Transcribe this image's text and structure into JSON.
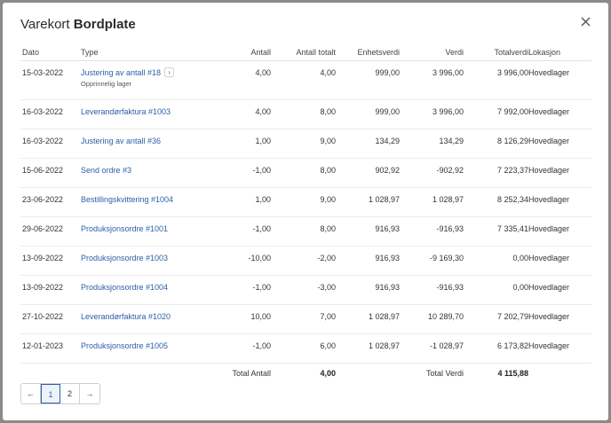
{
  "modal": {
    "title_prefix": "Varekort",
    "title_item": "Bordplate"
  },
  "columns": {
    "date": "Dato",
    "type": "Type",
    "qty": "Antall",
    "qty_total": "Antall totalt",
    "unit_value": "Enhetsverdi",
    "value": "Verdi",
    "total_value": "Totalverdi",
    "location": "Lokasjon"
  },
  "rows": [
    {
      "date": "15-03-2022",
      "type": "Justering av antall #18",
      "note": "Opprinnelig lager",
      "qty": "4,00",
      "qty_total": "4,00",
      "unit_value": "999,00",
      "value": "3 996,00",
      "total_value": "3 996,00",
      "location": "Hovedlager"
    },
    {
      "date": "16-03-2022",
      "type": "Leverandørfaktura #1003",
      "qty": "4,00",
      "qty_total": "8,00",
      "unit_value": "999,00",
      "value": "3 996,00",
      "total_value": "7 992,00",
      "location": "Hovedlager"
    },
    {
      "date": "16-03-2022",
      "type": "Justering av antall #36",
      "qty": "1,00",
      "qty_total": "9,00",
      "unit_value": "134,29",
      "value": "134,29",
      "total_value": "8 126,29",
      "location": "Hovedlager"
    },
    {
      "date": "15-06-2022",
      "type": "Send ordre #3",
      "qty": "-1,00",
      "qty_total": "8,00",
      "unit_value": "902,92",
      "value": "-902,92",
      "total_value": "7 223,37",
      "location": "Hovedlager"
    },
    {
      "date": "23-06-2022",
      "type": "Bestillingskvittering #1004",
      "qty": "1,00",
      "qty_total": "9,00",
      "unit_value": "1 028,97",
      "value": "1 028,97",
      "total_value": "8 252,34",
      "location": "Hovedlager"
    },
    {
      "date": "29-06-2022",
      "type": "Produksjonsordre #1001",
      "qty": "-1,00",
      "qty_total": "8,00",
      "unit_value": "916,93",
      "value": "-916,93",
      "total_value": "7 335,41",
      "location": "Hovedlager"
    },
    {
      "date": "13-09-2022",
      "type": "Produksjonsordre #1003",
      "qty": "-10,00",
      "qty_total": "-2,00",
      "unit_value": "916,93",
      "value": "-9 169,30",
      "total_value": "0,00",
      "location": "Hovedlager"
    },
    {
      "date": "13-09-2022",
      "type": "Produksjonsordre #1004",
      "qty": "-1,00",
      "qty_total": "-3,00",
      "unit_value": "916,93",
      "value": "-916,93",
      "total_value": "0,00",
      "location": "Hovedlager"
    },
    {
      "date": "27-10-2022",
      "type": "Leverandørfaktura #1020",
      "qty": "10,00",
      "qty_total": "7,00",
      "unit_value": "1 028,97",
      "value": "10 289,70",
      "total_value": "7 202,79",
      "location": "Hovedlager"
    },
    {
      "date": "12-01-2023",
      "type": "Produksjonsordre #1005",
      "qty": "-1,00",
      "qty_total": "6,00",
      "unit_value": "1 028,97",
      "value": "-1 028,97",
      "total_value": "6 173,82",
      "location": "Hovedlager"
    }
  ],
  "footer": {
    "total_qty_label": "Total Antall",
    "total_qty_value": "4,00",
    "total_value_label": "Total Verdi",
    "total_value_value": "4 115,88"
  },
  "pagination": {
    "prev": "←",
    "pages": [
      "1",
      "2"
    ],
    "current": "1",
    "next": "→"
  },
  "icons": {
    "close": "close-icon",
    "row_expand": "chevron-right-icon"
  },
  "colors": {
    "link": "#2c5fa8",
    "overlay": "#8a8a8a"
  }
}
